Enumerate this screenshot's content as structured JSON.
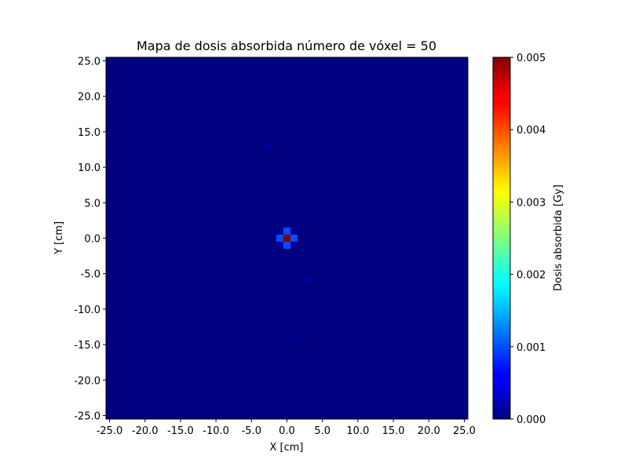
{
  "chart_data": {
    "type": "heatmap",
    "title": "Mapa de dosis absorbida número de vóxel = 50",
    "xlabel": "X [cm]",
    "ylabel": "Y [cm]",
    "xlim": [
      -25.5,
      25.5
    ],
    "ylim": [
      -25.5,
      25.5
    ],
    "grid_size": 50,
    "x_ticks": [
      -25.0,
      -20.0,
      -15.0,
      -10.0,
      -5.0,
      0.0,
      5.0,
      10.0,
      15.0,
      20.0,
      25.0
    ],
    "x_tick_labels": [
      "-25.0",
      "-20.0",
      "-15.0",
      "-10.0",
      "-5.0",
      "0.0",
      "5.0",
      "10.0",
      "15.0",
      "20.0",
      "25.0"
    ],
    "y_ticks": [
      25.0,
      20.0,
      15.0,
      10.0,
      5.0,
      0.0,
      -5.0,
      -10.0,
      -15.0,
      -20.0,
      -25.0
    ],
    "y_tick_labels": [
      "25.0",
      "20.0",
      "15.0",
      "10.0",
      "5.0",
      "0.0",
      "-5.0",
      "-10.0",
      "-15.0",
      "-20.0",
      "-25.0"
    ],
    "background_value": 0.0,
    "cells": [
      {
        "x": 0.0,
        "y": 0.0,
        "value": 0.005
      },
      {
        "x": 1.0,
        "y": 0.0,
        "value": 0.001
      },
      {
        "x": -1.0,
        "y": 0.0,
        "value": 0.001
      },
      {
        "x": 0.0,
        "y": 1.0,
        "value": 0.001
      },
      {
        "x": 0.0,
        "y": -1.0,
        "value": 0.001
      },
      {
        "x": 1.0,
        "y": 1.0,
        "value": 0.0001
      },
      {
        "x": -1.0,
        "y": 1.0,
        "value": 0.0001
      },
      {
        "x": 1.0,
        "y": -1.0,
        "value": 0.0001
      },
      {
        "x": -1.0,
        "y": -1.0,
        "value": 0.0001
      },
      {
        "x": -3.0,
        "y": 13.0,
        "value": 0.0001
      },
      {
        "x": 25.0,
        "y": 8.0,
        "value": 0.0001
      },
      {
        "x": 3.0,
        "y": -6.0,
        "value": 0.0001
      },
      {
        "x": 1.0,
        "y": -14.0,
        "value": 0.0001
      }
    ],
    "colorbar": {
      "label": "Dosis absorbida [Gy]",
      "colormap": "jet",
      "range": [
        0.0,
        0.005
      ],
      "ticks": [
        0.0,
        0.001,
        0.002,
        0.003,
        0.004,
        0.005
      ],
      "tick_labels": [
        "0.000",
        "0.001",
        "0.002",
        "0.003",
        "0.004",
        "0.005"
      ]
    },
    "grid": false
  }
}
